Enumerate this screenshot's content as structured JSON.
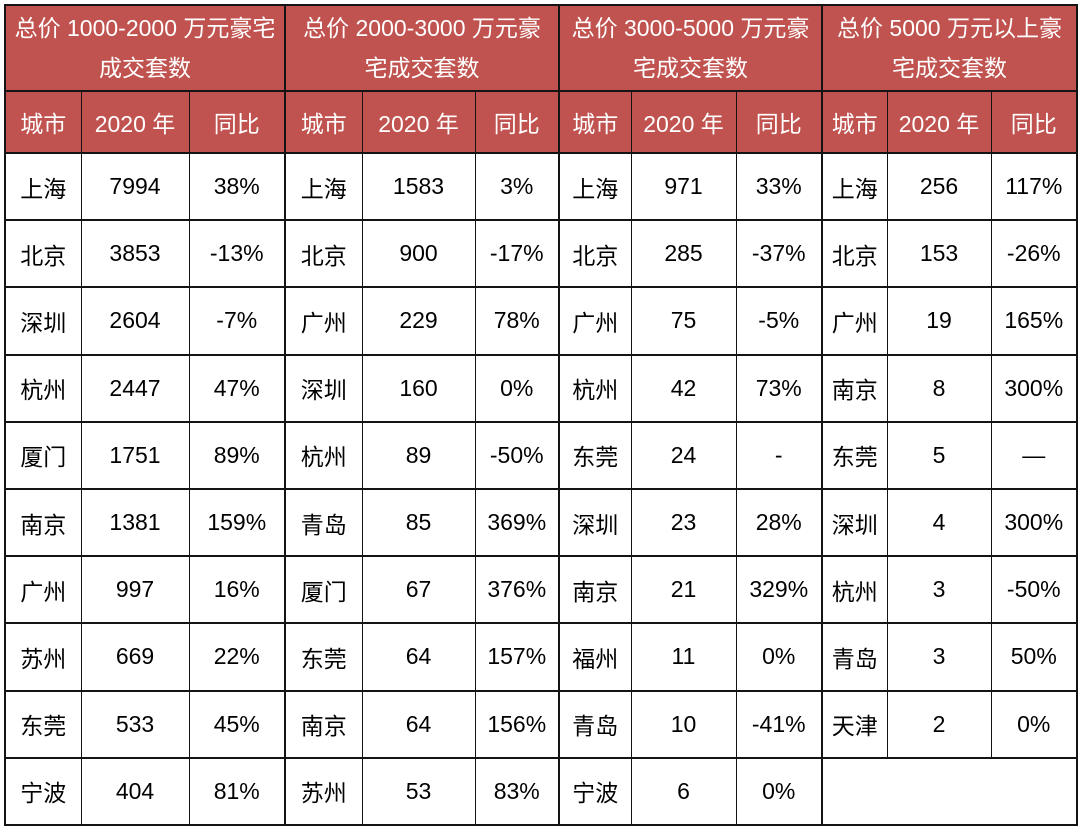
{
  "chart_data": {
    "type": "table",
    "description_colors": {
      "header_bg": "#c0534f",
      "header_text": "#ffffff",
      "border": "#141414",
      "body_bg": "#ffffff",
      "body_text": "#000000"
    },
    "groups": [
      {
        "title": "总价 1000-2000 万元豪宅成交套数",
        "columns": [
          "城市",
          "2020 年",
          "同比"
        ],
        "rows": [
          [
            "上海",
            "7994",
            "38%"
          ],
          [
            "北京",
            "3853",
            "-13%"
          ],
          [
            "深圳",
            "2604",
            "-7%"
          ],
          [
            "杭州",
            "2447",
            "47%"
          ],
          [
            "厦门",
            "1751",
            "89%"
          ],
          [
            "南京",
            "1381",
            "159%"
          ],
          [
            "广州",
            "997",
            "16%"
          ],
          [
            "苏州",
            "669",
            "22%"
          ],
          [
            "东莞",
            "533",
            "45%"
          ],
          [
            "宁波",
            "404",
            "81%"
          ]
        ]
      },
      {
        "title": "总价 2000-3000 万元豪宅成交套数",
        "columns": [
          "城市",
          "2020 年",
          "同比"
        ],
        "rows": [
          [
            "上海",
            "1583",
            "3%"
          ],
          [
            "北京",
            "900",
            "-17%"
          ],
          [
            "广州",
            "229",
            "78%"
          ],
          [
            "深圳",
            "160",
            "0%"
          ],
          [
            "杭州",
            "89",
            "-50%"
          ],
          [
            "青岛",
            "85",
            "369%"
          ],
          [
            "厦门",
            "67",
            "376%"
          ],
          [
            "东莞",
            "64",
            "157%"
          ],
          [
            "南京",
            "64",
            "156%"
          ],
          [
            "苏州",
            "53",
            "83%"
          ]
        ]
      },
      {
        "title": "总价 3000-5000 万元豪宅成交套数",
        "columns": [
          "城市",
          "2020 年",
          "同比"
        ],
        "rows": [
          [
            "上海",
            "971",
            "33%"
          ],
          [
            "北京",
            "285",
            "-37%"
          ],
          [
            "广州",
            "75",
            "-5%"
          ],
          [
            "杭州",
            "42",
            "73%"
          ],
          [
            "东莞",
            "24",
            "-"
          ],
          [
            "深圳",
            "23",
            "28%"
          ],
          [
            "南京",
            "21",
            "329%"
          ],
          [
            "福州",
            "11",
            "0%"
          ],
          [
            "青岛",
            "10",
            "-41%"
          ],
          [
            "宁波",
            "6",
            "0%"
          ]
        ]
      },
      {
        "title": "总价 5000 万元以上豪宅成交套数",
        "columns": [
          "城市",
          "2020 年",
          "同比"
        ],
        "rows": [
          [
            "上海",
            "256",
            "117%"
          ],
          [
            "北京",
            "153",
            "-26%"
          ],
          [
            "广州",
            "19",
            "165%"
          ],
          [
            "南京",
            "8",
            "300%"
          ],
          [
            "东莞",
            "5",
            "—"
          ],
          [
            "深圳",
            "4",
            "300%"
          ],
          [
            "杭州",
            "3",
            "-50%"
          ],
          [
            "青岛",
            "3",
            "50%"
          ],
          [
            "天津",
            "2",
            "0%"
          ]
        ]
      }
    ]
  }
}
